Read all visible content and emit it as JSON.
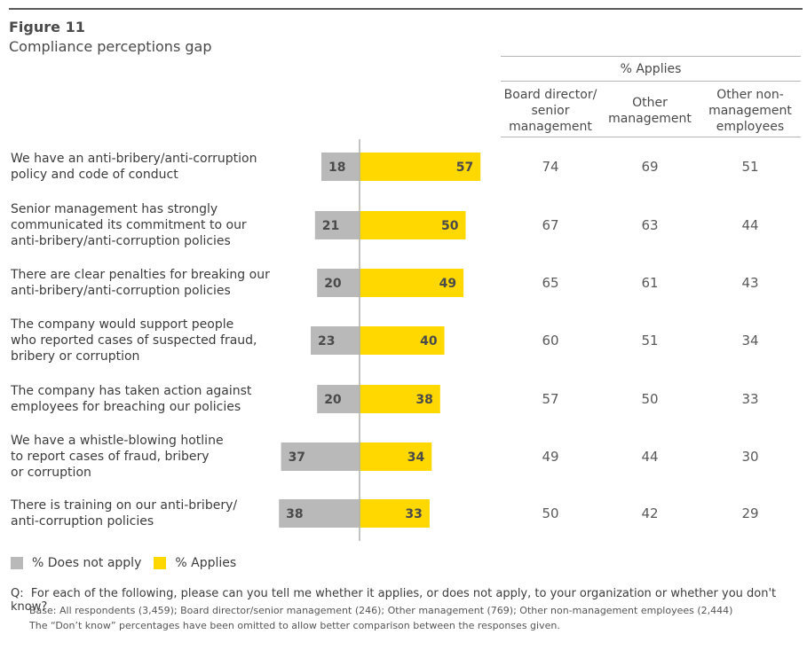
{
  "figure": {
    "label": "Figure 11",
    "title": "Compliance perceptions gap"
  },
  "table": {
    "group_title": "% Applies",
    "columns": [
      "Board director/\nsenior\nmanagement",
      "Other\nmanagement",
      "Other non-\nmanagement\nemployees"
    ]
  },
  "rows": [
    {
      "label": "We have an anti-bribery/anti-corruption\npolicy and code of conduct",
      "values": [
        "74",
        "69",
        "51"
      ]
    },
    {
      "label": "Senior management has strongly\ncommunicated its commitment to our\nanti-bribery/anti-corruption policies",
      "values": [
        "67",
        "63",
        "44"
      ]
    },
    {
      "label": "There are clear penalties for breaking our\nanti-bribery/anti-corruption policies",
      "values": [
        "65",
        "61",
        "43"
      ]
    },
    {
      "label": "The company would support people\nwho reported cases of suspected fraud,\nbribery or corruption",
      "values": [
        "60",
        "51",
        "34"
      ]
    },
    {
      "label": "The company has taken action against\nemployees for breaching our policies",
      "values": [
        "57",
        "50",
        "33"
      ]
    },
    {
      "label": "We have a whistle-blowing hotline\nto report cases of fraud, bribery\nor corruption",
      "values": [
        "49",
        "44",
        "30"
      ]
    },
    {
      "label": "There is training on our anti-bribery/\nanti-corruption policies",
      "values": [
        "50",
        "42",
        "29"
      ]
    }
  ],
  "legend": {
    "does_not_apply": "% Does not apply",
    "applies": "% Applies"
  },
  "notes": {
    "question_prefix": "Q:",
    "question": "For each of the following, please can you tell me whether it applies, or does not apply, to your organization or whether you don't know?",
    "base": "Base: All respondents (3,459); Board director/senior management (246); Other management (769); Other non-management employees (2,444)",
    "dont_know": "The “Don’t know” percentages have been omitted to allow better comparison between the responses given."
  },
  "colors": {
    "does_not_apply": "#b9b9b9",
    "applies": "#ffd800",
    "axis": "#b0b0b0",
    "bar_label": "#4a4a4a"
  },
  "chart_data": {
    "type": "bar",
    "orientation": "horizontal-diverging",
    "categories": [
      "We have an anti-bribery/anti-corruption policy and code of conduct",
      "Senior management has strongly communicated its commitment to our anti-bribery/anti-corruption policies",
      "There are clear penalties for breaking our anti-bribery/anti-corruption policies",
      "The company would support people who reported cases of suspected fraud, bribery or corruption",
      "The company has taken action against employees for breaching our policies",
      "We have a whistle-blowing hotline to report cases of fraud, bribery or corruption",
      "There is training on our anti-bribery/anti-corruption policies"
    ],
    "series": [
      {
        "name": "% Does not apply",
        "values": [
          18,
          21,
          20,
          23,
          20,
          37,
          38
        ],
        "direction": "left"
      },
      {
        "name": "% Applies",
        "values": [
          57,
          50,
          49,
          40,
          38,
          34,
          33
        ],
        "direction": "right"
      }
    ],
    "title": "Compliance perceptions gap",
    "legend": "bottom-left",
    "grid": false
  }
}
